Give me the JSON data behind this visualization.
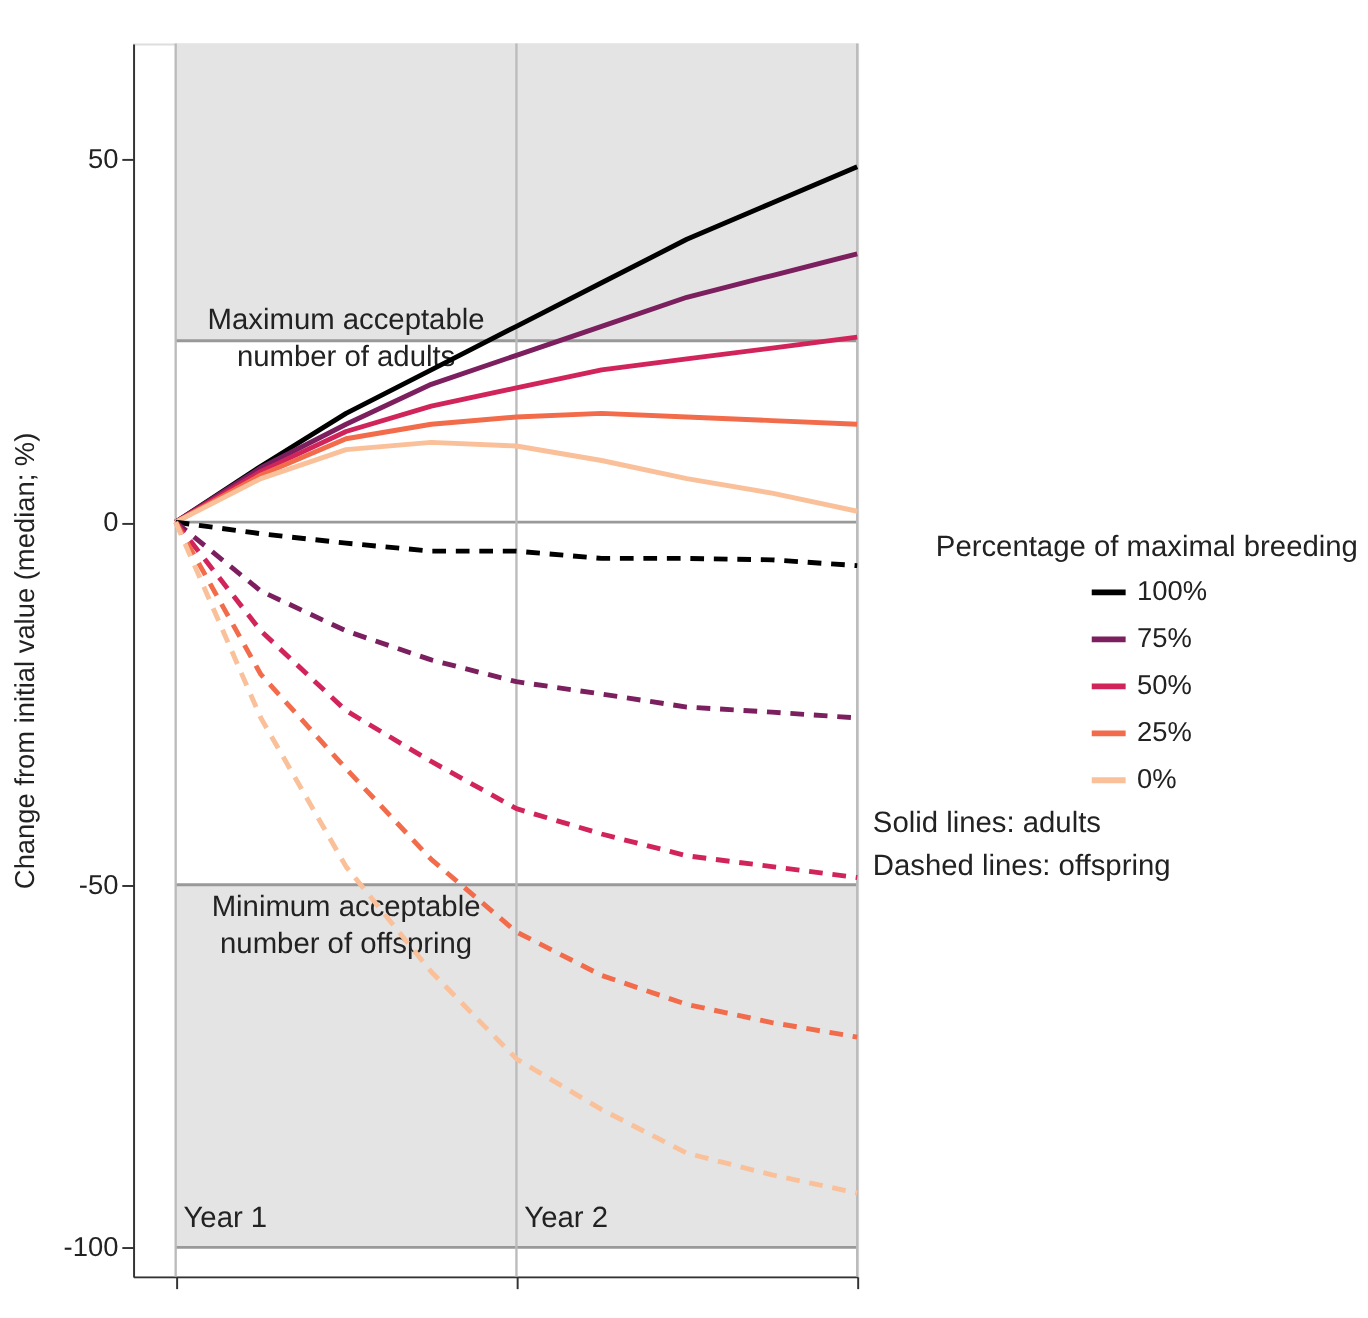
{
  "chart_data": {
    "type": "line",
    "ylabel": "Change from initial value (median; %)",
    "legend_title": "Percentage of maximal breeding",
    "categories": [
      null,
      null,
      null,
      null,
      null,
      null,
      null,
      null,
      null
    ],
    "ylim": [
      -104,
      66
    ],
    "yticks": [
      -100,
      -50,
      0,
      50
    ],
    "tick_labels": "y",
    "grid": false,
    "legend": "right",
    "series": [
      {
        "name": "100%",
        "color": "#000000",
        "line_style": "solid",
        "values": [
          0,
          7.7,
          15,
          21,
          27,
          33,
          39,
          44,
          49
        ]
      },
      {
        "name": "75%",
        "color": "#7b1f5e",
        "line_style": "solid",
        "values": [
          0,
          7.5,
          13.5,
          19,
          23,
          27,
          31,
          34,
          37
        ]
      },
      {
        "name": "50%",
        "color": "#d0245a",
        "line_style": "solid",
        "values": [
          0,
          7,
          12.5,
          16,
          18.5,
          21,
          22.5,
          24,
          25.5
        ]
      },
      {
        "name": "25%",
        "color": "#f26b4a",
        "line_style": "solid",
        "values": [
          0,
          6.5,
          11.5,
          13.5,
          14.5,
          15,
          14.5,
          14,
          13.5
        ]
      },
      {
        "name": "0%",
        "color": "#f9c09a",
        "line_style": "solid",
        "values": [
          0,
          6,
          10,
          11,
          10.5,
          8.5,
          6,
          4,
          1.5
        ]
      },
      {
        "color": "#000000",
        "line_style": "dashed",
        "values": [
          0,
          -1.6,
          -2.9,
          -4,
          -4,
          -5,
          -5,
          -5.2,
          -6
        ]
      },
      {
        "color": "#7b1f5e",
        "line_style": "dashed",
        "values": [
          0,
          -9.5,
          -15,
          -19,
          -22,
          -23.7,
          -25.5,
          -26.2,
          -27
        ]
      },
      {
        "color": "#d0245a",
        "line_style": "dashed",
        "values": [
          0,
          -15,
          -26,
          -33,
          -39.5,
          -43,
          -46,
          -47.5,
          -49
        ]
      },
      {
        "color": "#f26b4a",
        "line_style": "dashed",
        "values": [
          0,
          -21,
          -34,
          -46.5,
          -56.5,
          -62.5,
          -66.5,
          -69,
          -71
        ]
      },
      {
        "color": "#f9c09a",
        "line_style": "dashed",
        "values": [
          0,
          -27,
          -47.5,
          -62,
          -74,
          -81,
          -87,
          -90,
          -92.5
        ]
      }
    ],
    "bands": [
      {
        "axis": "y",
        "from": 25,
        "to": 66,
        "label": "Maximum acceptable number of adults",
        "color": "#e4e4e4"
      },
      {
        "axis": "y",
        "from": -100,
        "to": -50,
        "label": "Minimum acceptable number of offspring",
        "color": "#e4e4e4"
      }
    ],
    "ref_lines": [
      {
        "axis": "y",
        "value": 25,
        "color": "#999999"
      },
      {
        "axis": "y",
        "value": 0,
        "color": "#999999"
      },
      {
        "axis": "y",
        "value": -50,
        "color": "#999999"
      },
      {
        "axis": "y",
        "value": -100,
        "color": "#999999"
      }
    ],
    "annotations": [
      "Year 1",
      "Year 2",
      "Solid lines: adults",
      "Dashed lines: offspring"
    ]
  }
}
